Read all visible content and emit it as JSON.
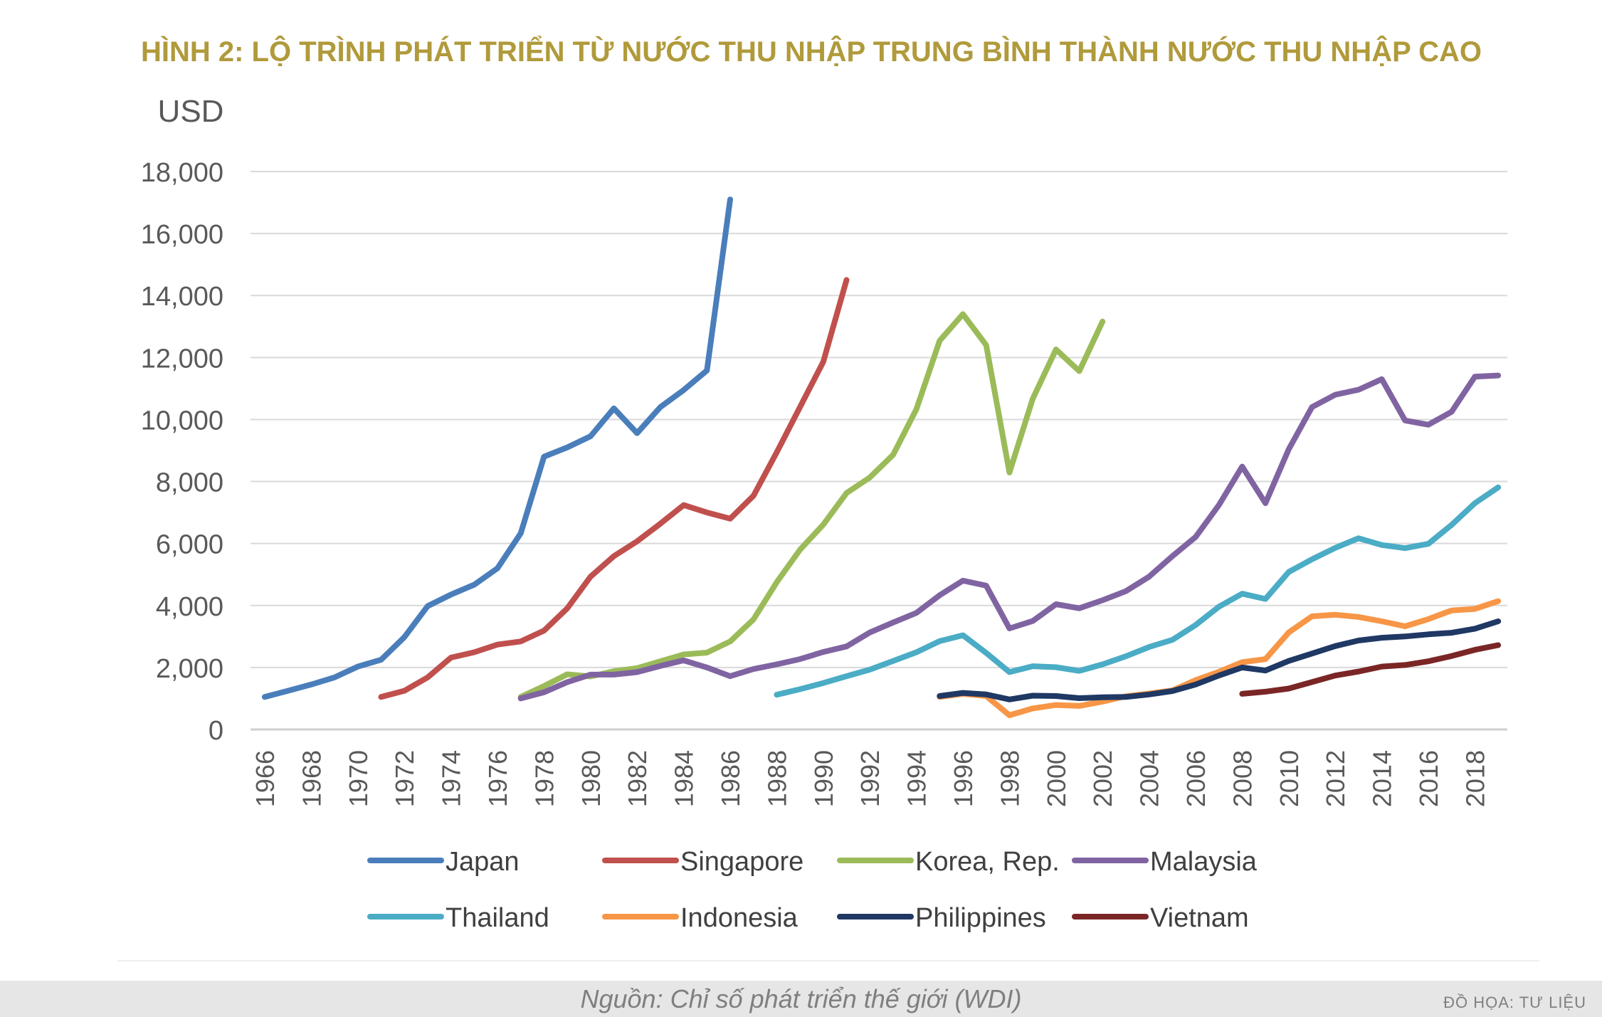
{
  "chart_data": {
    "type": "line",
    "title": "HÌNH 2: LỘ TRÌNH PHÁT TRIỂN TỪ NƯỚC THU NHẬP TRUNG BÌNH THÀNH NƯỚC THU NHẬP CAO",
    "ylabel": "USD",
    "xlabel": "",
    "ylim": [
      0,
      18000
    ],
    "xlim": [
      1966,
      2019
    ],
    "yticks": [
      "0",
      "2,000",
      "4,000",
      "6,000",
      "8,000",
      "10,000",
      "12,000",
      "14,000",
      "16,000",
      "18,000"
    ],
    "xticks": [
      "1966",
      "1968",
      "1970",
      "1972",
      "1974",
      "1976",
      "1978",
      "1980",
      "1982",
      "1984",
      "1986",
      "1988",
      "1990",
      "1992",
      "1994",
      "1996",
      "1998",
      "2000",
      "2002",
      "2004",
      "2006",
      "2008",
      "2010",
      "2012",
      "2014",
      "2016",
      "2018"
    ],
    "grid": true,
    "legend_position": "bottom",
    "title_color": "#B09A3B",
    "series": [
      {
        "name": "Japan",
        "color": "#4A7EBB",
        "x": [
          1966,
          1967,
          1968,
          1969,
          1970,
          1971,
          1972,
          1973,
          1974,
          1975,
          1976,
          1977,
          1978,
          1979,
          1980,
          1981,
          1982,
          1983,
          1984,
          1985,
          1986
        ],
        "y": [
          1050,
          1250,
          1450,
          1680,
          2030,
          2250,
          2980,
          3980,
          4350,
          4670,
          5200,
          6330,
          8800,
          9100,
          9460,
          10360,
          9560,
          10400,
          10950,
          11580,
          17100
        ]
      },
      {
        "name": "Singapore",
        "color": "#C0504D",
        "x": [
          1971,
          1972,
          1973,
          1974,
          1975,
          1976,
          1977,
          1978,
          1979,
          1980,
          1981,
          1982,
          1983,
          1984,
          1985,
          1986,
          1987,
          1988,
          1989,
          1990,
          1991
        ],
        "y": [
          1050,
          1250,
          1680,
          2320,
          2490,
          2740,
          2840,
          3190,
          3910,
          4930,
          5590,
          6070,
          6640,
          7240,
          7000,
          6800,
          7540,
          8940,
          10400,
          11860,
          14500
        ]
      },
      {
        "name": "Korea, Rep.",
        "color": "#9BBB59",
        "x": [
          1977,
          1978,
          1979,
          1980,
          1981,
          1982,
          1983,
          1984,
          1985,
          1986,
          1987,
          1988,
          1989,
          1990,
          1991,
          1992,
          1993,
          1994,
          1995,
          1996,
          1997,
          1998,
          1999,
          2000,
          2001,
          2002
        ],
        "y": [
          1050,
          1400,
          1780,
          1710,
          1880,
          1980,
          2200,
          2420,
          2480,
          2840,
          3550,
          4750,
          5800,
          6610,
          7630,
          8130,
          8860,
          10330,
          12540,
          13400,
          12400,
          8290,
          10670,
          12260,
          11560,
          13160
        ]
      },
      {
        "name": "Malaysia",
        "color": "#8064A2",
        "x": [
          1977,
          1978,
          1979,
          1980,
          1981,
          1982,
          1983,
          1984,
          1985,
          1986,
          1987,
          1988,
          1989,
          1990,
          1991,
          1992,
          1993,
          1994,
          1995,
          1996,
          1997,
          1998,
          1999,
          2000,
          2001,
          2002,
          2003,
          2004,
          2005,
          2006,
          2007,
          2008,
          2009,
          2010,
          2011,
          2012,
          2013,
          2014,
          2015,
          2016,
          2017,
          2018,
          2019
        ],
        "y": [
          1000,
          1200,
          1530,
          1770,
          1770,
          1850,
          2050,
          2230,
          2000,
          1720,
          1950,
          2100,
          2270,
          2500,
          2680,
          3130,
          3450,
          3760,
          4330,
          4800,
          4640,
          3260,
          3500,
          4040,
          3910,
          4170,
          4460,
          4930,
          5590,
          6210,
          7240,
          8480,
          7300,
          9040,
          10400,
          10800,
          10960,
          11300,
          9970,
          9830,
          10250,
          11380,
          11420
        ]
      },
      {
        "name": "Thailand",
        "color": "#4BACC6",
        "x": [
          1988,
          1989,
          1990,
          1991,
          1992,
          1993,
          1994,
          1995,
          1996,
          1997,
          1998,
          1999,
          2000,
          2001,
          2002,
          2003,
          2004,
          2005,
          2006,
          2007,
          2008,
          2009,
          2010,
          2011,
          2012,
          2013,
          2014,
          2015,
          2016,
          2017,
          2018,
          2019
        ],
        "y": [
          1120,
          1300,
          1500,
          1720,
          1930,
          2210,
          2490,
          2850,
          3040,
          2470,
          1850,
          2040,
          2010,
          1890,
          2100,
          2360,
          2660,
          2890,
          3370,
          3960,
          4380,
          4210,
          5080,
          5490,
          5860,
          6170,
          5950,
          5850,
          5990,
          6600,
          7300,
          7810
        ]
      },
      {
        "name": "Indonesia",
        "color": "#F79646",
        "x": [
          1995,
          1996,
          1997,
          1998,
          1999,
          2000,
          2001,
          2002,
          2003,
          2004,
          2005,
          2006,
          2007,
          2008,
          2009,
          2010,
          2011,
          2012,
          2013,
          2014,
          2015,
          2016,
          2017,
          2018,
          2019
        ],
        "y": [
          1050,
          1150,
          1080,
          460,
          680,
          790,
          760,
          900,
          1070,
          1160,
          1260,
          1590,
          1860,
          2170,
          2270,
          3130,
          3650,
          3700,
          3630,
          3490,
          3330,
          3560,
          3840,
          3890,
          4140
        ]
      },
      {
        "name": "Philippines",
        "color": "#1F3864",
        "x": [
          1995,
          1996,
          1997,
          1998,
          1999,
          2000,
          2001,
          2002,
          2003,
          2004,
          2005,
          2006,
          2007,
          2008,
          2009,
          2010,
          2011,
          2012,
          2013,
          2014,
          2015,
          2016,
          2017,
          2018,
          2019
        ],
        "y": [
          1080,
          1180,
          1130,
          970,
          1090,
          1080,
          1010,
          1040,
          1050,
          1130,
          1240,
          1450,
          1740,
          2000,
          1900,
          2210,
          2450,
          2690,
          2870,
          2960,
          3000,
          3070,
          3120,
          3250,
          3490
        ]
      },
      {
        "name": "Vietnam",
        "color": "#7B2626",
        "x": [
          2008,
          2009,
          2010,
          2011,
          2012,
          2013,
          2014,
          2015,
          2016,
          2017,
          2018,
          2019
        ],
        "y": [
          1150,
          1220,
          1320,
          1530,
          1740,
          1870,
          2030,
          2080,
          2200,
          2370,
          2570,
          2720
        ]
      }
    ]
  },
  "footer": {
    "source": "Nguồn: Chỉ số phát triển thế giới (WDI)",
    "credit": "ĐỒ HỌA:  TƯ LIỆU"
  }
}
